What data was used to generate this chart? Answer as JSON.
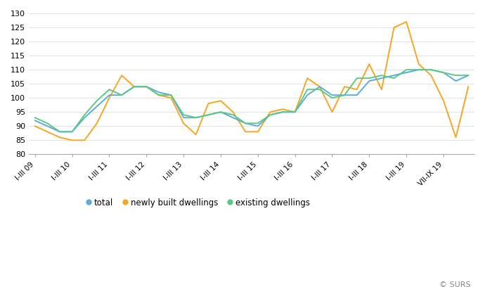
{
  "x_labels": [
    "I-III 09",
    "I-III 10",
    "I-III 11",
    "I-III 12",
    "I-III 13",
    "I-III 14",
    "I-III 15",
    "I-III 16",
    "I-III 17",
    "I-III 18",
    "I-III 19",
    "VII-IX 19"
  ],
  "total": [
    92,
    90,
    88,
    88,
    93,
    97,
    101,
    101,
    104,
    104,
    102,
    101,
    93,
    93,
    94,
    95,
    93,
    91,
    90,
    94,
    95,
    95,
    101,
    104,
    101,
    101,
    101,
    106,
    107,
    108,
    109,
    110,
    110,
    109,
    106,
    108
  ],
  "newly_built": [
    90,
    88,
    86,
    85,
    85,
    91,
    100,
    108,
    104,
    104,
    101,
    100,
    91,
    87,
    98,
    99,
    95,
    88,
    88,
    95,
    96,
    95,
    107,
    104,
    95,
    104,
    103,
    112,
    103,
    125,
    127,
    112,
    108,
    99,
    86,
    104
  ],
  "existing": [
    93,
    91,
    88,
    88,
    94,
    99,
    103,
    101,
    104,
    104,
    101,
    101,
    94,
    93,
    94,
    95,
    94,
    91,
    91,
    94,
    95,
    95,
    103,
    103,
    100,
    101,
    107,
    107,
    108,
    107,
    110,
    110,
    110,
    109,
    108,
    108
  ],
  "total_color": "#5aabe0",
  "newly_built_color": "#f5a623",
  "existing_color": "#5dc882",
  "ylabel_ticks": [
    80,
    85,
    90,
    95,
    100,
    105,
    110,
    115,
    120,
    125,
    130
  ],
  "ylim": [
    80,
    131
  ],
  "background_color": "#ffffff",
  "legend_labels": [
    "total",
    "newly built dwellings",
    "existing dwellings"
  ],
  "copyright_text": "© SURS",
  "line_width": 1.4
}
